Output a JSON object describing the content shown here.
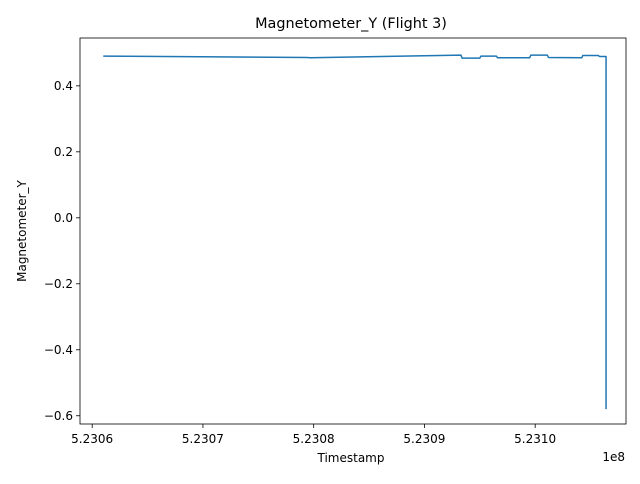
{
  "chart_data": {
    "type": "line",
    "title": "Magnetometer_Y (Flight 3)",
    "xlabel": "Timestamp",
    "ylabel": "Magnetometer_Y",
    "x_offset_label": "1e8",
    "xlim": [
      523058900,
      523108200
    ],
    "ylim": [
      -0.625,
      0.545
    ],
    "x_ticks": [
      523060000,
      523070000,
      523080000,
      523090000,
      523100000
    ],
    "x_tick_labels": [
      "5.2306",
      "5.2307",
      "5.2308",
      "5.2309",
      "5.2310"
    ],
    "y_ticks": [
      -0.6,
      -0.4,
      -0.2,
      0.0,
      0.2,
      0.4
    ],
    "y_tick_labels": [
      "−0.6",
      "−0.4",
      "−0.2",
      "0.0",
      "0.2",
      "0.4"
    ],
    "grid": false,
    "series": [
      {
        "color": "#1f77b4",
        "x": [
          523061000,
          523079400,
          523079700,
          523093300,
          523093400,
          523095000,
          523095100,
          523096500,
          523096600,
          523099500,
          523099600,
          523101100,
          523101200,
          523104200,
          523104300,
          523105700,
          523105800,
          523106300,
          523106400,
          523106400
        ],
        "y": [
          0.49,
          0.486,
          0.485,
          0.493,
          0.484,
          0.484,
          0.49,
          0.49,
          0.485,
          0.485,
          0.493,
          0.493,
          0.486,
          0.485,
          0.492,
          0.492,
          0.489,
          0.489,
          0.489,
          -0.58
        ]
      }
    ]
  }
}
